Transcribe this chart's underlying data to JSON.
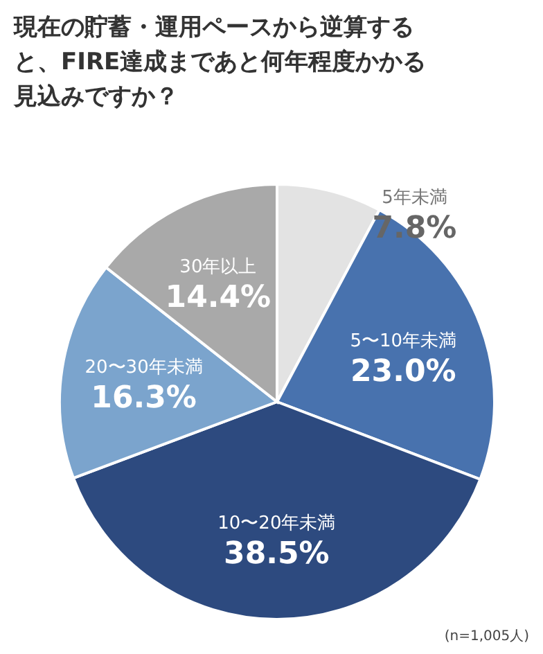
{
  "chart_data": {
    "type": "pie",
    "title": "現在の貯蓄・運用ペースから逆算すると、FIRE達成まであと何年程度かかる見込みですか？",
    "categories": [
      "5年未満",
      "5〜10年未満",
      "10〜20年未満",
      "20〜30年未満",
      "30年以上"
    ],
    "values": [
      7.8,
      23.0,
      38.5,
      16.3,
      14.4
    ],
    "value_labels": [
      "7.8%",
      "23.0%",
      "38.5%",
      "16.3%",
      "14.4%"
    ],
    "colors": [
      "#e3e3e3",
      "#4872ae",
      "#2d4a7f",
      "#7ba4cd",
      "#a9a9a9"
    ],
    "annotations": [
      "(n=1,005人)"
    ]
  }
}
